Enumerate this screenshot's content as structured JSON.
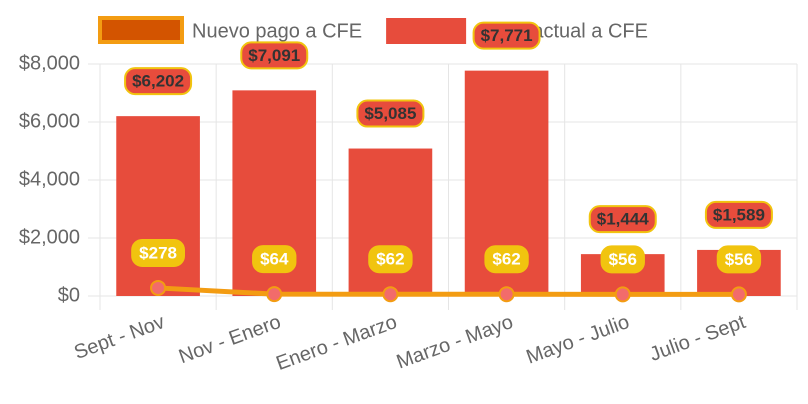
{
  "chart_data": {
    "type": "bar",
    "categories": [
      "Sept - Nov",
      "Nov - Enero",
      "Enero - Marzo",
      "Marzo - Mayo",
      "Mayo - Julio",
      "Julio - Sept"
    ],
    "series": [
      {
        "name": "Nuevo pago a CFE",
        "type": "line",
        "color": "#f39c12",
        "values": [
          278,
          64,
          62,
          62,
          56,
          56
        ],
        "value_labels": [
          "$278",
          "$64",
          "$62",
          "$62",
          "$56",
          "$56"
        ]
      },
      {
        "name": "Pago actual a CFE",
        "type": "bar",
        "color": "#e74c3c",
        "values": [
          6202,
          7091,
          5085,
          7771,
          1444,
          1589
        ],
        "value_labels": [
          "$6,202",
          "$7,091",
          "$5,085",
          "$7,771",
          "$1,444",
          "$1,589"
        ]
      }
    ],
    "ylim": [
      0,
      8000
    ],
    "yticks": [
      {
        "value": 0,
        "label": "$0"
      },
      {
        "value": 2000,
        "label": "$2,000"
      },
      {
        "value": 4000,
        "label": "$4,000"
      },
      {
        "value": 6000,
        "label": "$6,000"
      },
      {
        "value": 8000,
        "label": "$8,000"
      }
    ],
    "grid": true,
    "legend": "top"
  }
}
